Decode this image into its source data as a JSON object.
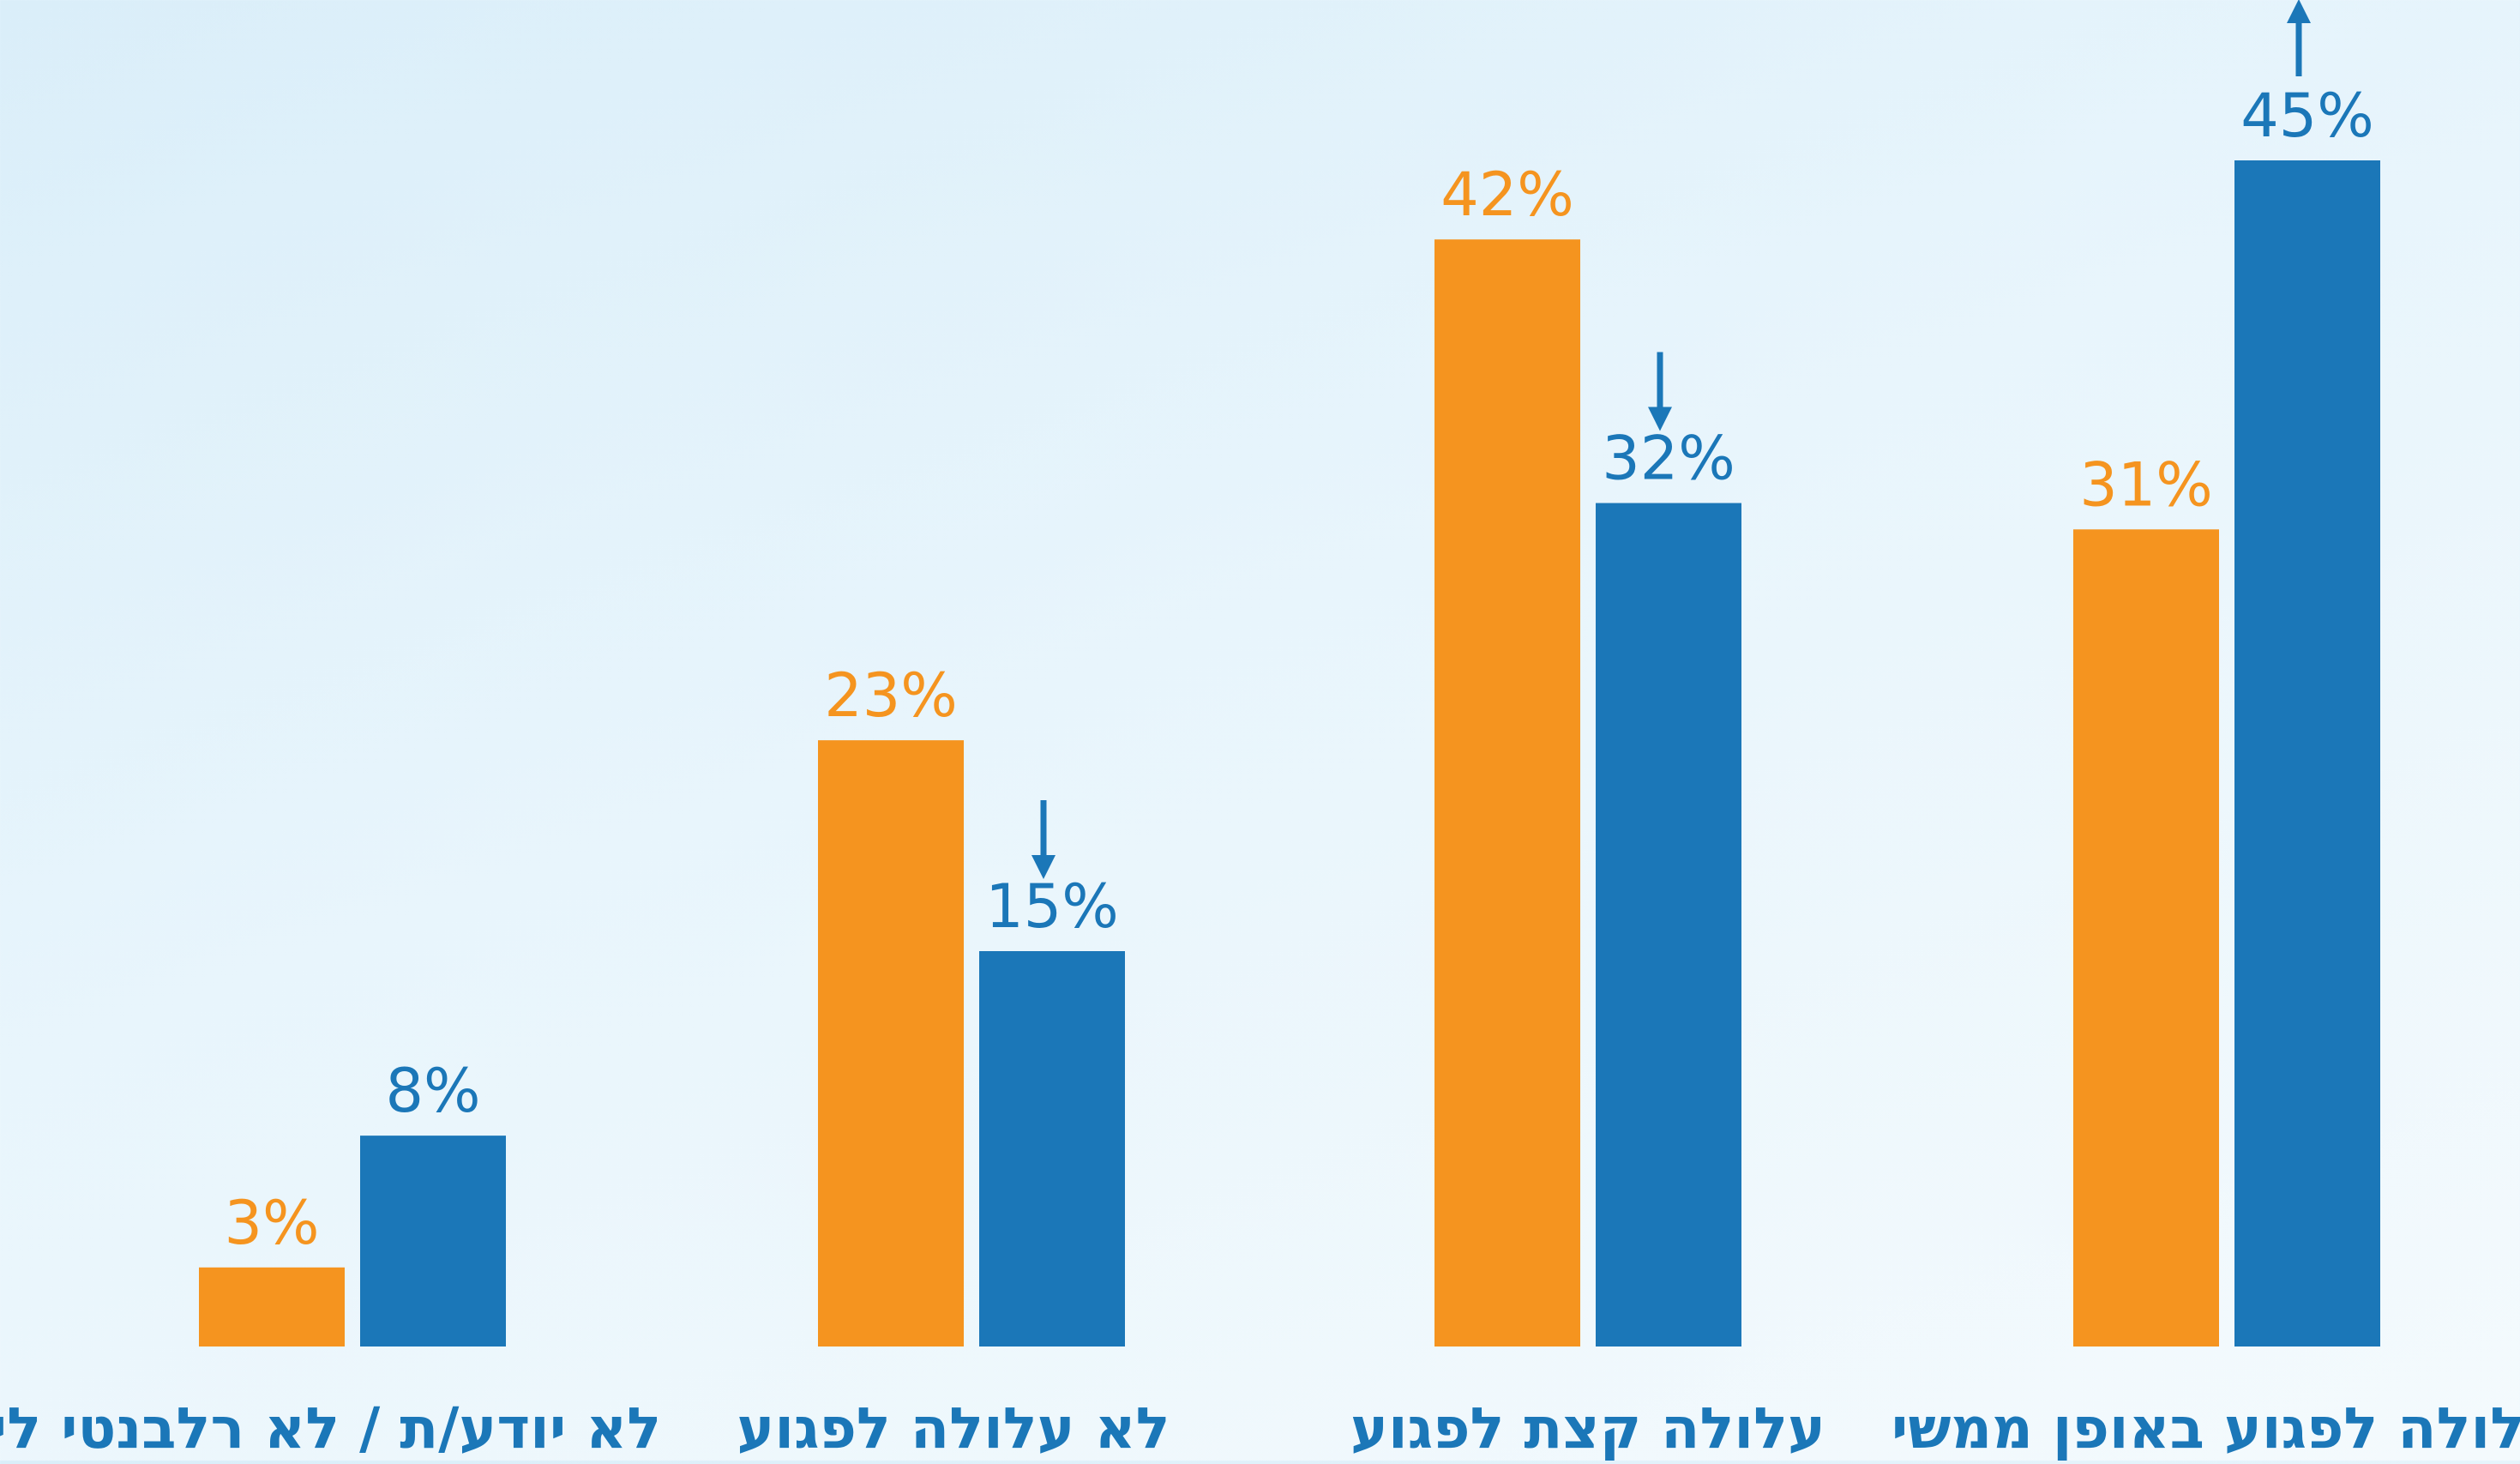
{
  "chart_data": {
    "type": "bar",
    "title": "",
    "xlabel": "",
    "ylabel": "",
    "ylim": [
      0,
      45
    ],
    "grid": false,
    "legend": "none",
    "categories": [
      "לא יודע/ת / לא רלבנטי לי",
      "לא עלולה לפגוע",
      "עלולה קצת לפגוע",
      "עלולה לפגוע באופן ממשי"
    ],
    "series": [
      {
        "values": [
          3,
          23,
          42,
          31
        ],
        "color": "#f5941f"
      },
      {
        "values": [
          8,
          15,
          32,
          45
        ],
        "color": "#1b77b8"
      }
    ],
    "value_format": "{v}%",
    "change_arrows": [
      null,
      "down",
      "down",
      "up"
    ],
    "arrow_color": "#1b77b8"
  }
}
